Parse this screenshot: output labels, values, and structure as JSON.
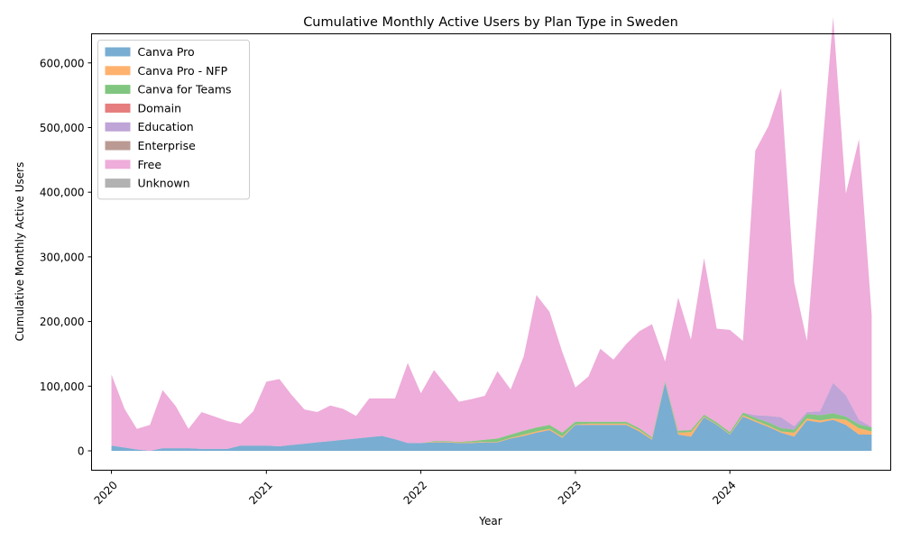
{
  "chart_data": {
    "type": "area",
    "stacked": true,
    "title": "Cumulative Monthly Active Users by Plan Type in Sweden",
    "xlabel": "Year",
    "ylabel": "Cumulative Monthly Active Users",
    "xlim": [
      "2019-11-15",
      "2025-01-15"
    ],
    "ylim": [
      -30000,
      645000
    ],
    "yticks": [
      0,
      100000,
      200000,
      300000,
      400000,
      500000,
      600000
    ],
    "ytick_labels": [
      "0",
      "100,000",
      "200,000",
      "300,000",
      "400,000",
      "500,000",
      "600,000"
    ],
    "xticks": [
      "2020-01-01",
      "2021-01-01",
      "2022-01-01",
      "2023-01-01",
      "2024-01-01"
    ],
    "xtick_labels": [
      "2020",
      "2021",
      "2022",
      "2023",
      "2024"
    ],
    "grid": false,
    "legend_position": "upper-left",
    "x": [
      "2020-01-01",
      "2020-02-01",
      "2020-03-01",
      "2020-04-01",
      "2020-05-01",
      "2020-06-01",
      "2020-07-01",
      "2020-08-01",
      "2020-09-01",
      "2020-10-01",
      "2020-11-01",
      "2020-12-01",
      "2021-01-01",
      "2021-02-01",
      "2021-03-01",
      "2021-04-01",
      "2021-05-01",
      "2021-06-01",
      "2021-07-01",
      "2021-08-01",
      "2021-09-01",
      "2021-10-01",
      "2021-11-01",
      "2021-12-01",
      "2022-01-01",
      "2022-02-01",
      "2022-03-01",
      "2022-04-01",
      "2022-05-01",
      "2022-06-01",
      "2022-07-01",
      "2022-08-01",
      "2022-09-01",
      "2022-10-01",
      "2022-11-01",
      "2022-12-01",
      "2023-01-01",
      "2023-02-01",
      "2023-03-01",
      "2023-04-01",
      "2023-05-01",
      "2023-06-01",
      "2023-07-01",
      "2023-08-01",
      "2023-09-01",
      "2023-10-01",
      "2023-11-01",
      "2023-12-01",
      "2024-01-01",
      "2024-02-01",
      "2024-03-01",
      "2024-04-01",
      "2024-05-01",
      "2024-06-01",
      "2024-07-01",
      "2024-08-01",
      "2024-09-01",
      "2024-10-01",
      "2024-11-01",
      "2024-12-01"
    ],
    "series": [
      {
        "name": "Canva Pro",
        "color": "#1f77b4",
        "values": [
          8000,
          5000,
          2000,
          0,
          4000,
          4000,
          4000,
          3000,
          3000,
          3000,
          8000,
          8000,
          8000,
          7000,
          9000,
          11000,
          13000,
          15000,
          17000,
          19000,
          21000,
          23000,
          18000,
          12000,
          12000,
          13000,
          13000,
          12000,
          12000,
          13000,
          13000,
          19000,
          23000,
          28000,
          32000,
          20000,
          40000,
          40000,
          40000,
          40000,
          40000,
          30000,
          17000,
          105000,
          25000,
          22000,
          52000,
          40000,
          25000,
          53000,
          45000,
          37000,
          28000,
          22000,
          47000,
          44000,
          48000,
          40000,
          25000,
          25000
        ]
      },
      {
        "name": "Canva Pro - NFP",
        "color": "#ff7f0e",
        "values": [
          0,
          0,
          0,
          0,
          0,
          0,
          0,
          0,
          0,
          0,
          0,
          0,
          0,
          0,
          0,
          0,
          0,
          0,
          0,
          0,
          0,
          0,
          0,
          0,
          0,
          1000,
          1000,
          1000,
          1000,
          1000,
          1000,
          1000,
          2000,
          2000,
          2000,
          2000,
          1000,
          2000,
          2000,
          2000,
          2000,
          2000,
          2000,
          1000,
          3000,
          7000,
          1000,
          1000,
          1000,
          2000,
          2000,
          2000,
          2000,
          6000,
          3000,
          3000,
          2000,
          8000,
          10000,
          5000
        ]
      },
      {
        "name": "Canva for Teams",
        "color": "#2ca02c",
        "values": [
          0,
          0,
          0,
          0,
          0,
          0,
          0,
          0,
          0,
          0,
          0,
          0,
          0,
          0,
          0,
          0,
          0,
          0,
          0,
          0,
          0,
          0,
          0,
          0,
          0,
          1000,
          1000,
          1000,
          2000,
          3000,
          5000,
          5000,
          6000,
          6000,
          6000,
          6000,
          4000,
          3000,
          3000,
          3000,
          3000,
          3000,
          2000,
          2000,
          3000,
          3000,
          3000,
          3000,
          3000,
          4000,
          4000,
          5000,
          5000,
          5000,
          7000,
          8000,
          8000,
          5000,
          6000,
          6000
        ]
      },
      {
        "name": "Domain",
        "color": "#d62728",
        "values": [
          0,
          0,
          0,
          0,
          0,
          0,
          0,
          0,
          0,
          0,
          0,
          0,
          0,
          0,
          0,
          0,
          0,
          0,
          0,
          0,
          0,
          0,
          0,
          0,
          0,
          0,
          0,
          0,
          0,
          0,
          0,
          0,
          0,
          0,
          0,
          0,
          0,
          0,
          0,
          0,
          0,
          0,
          0,
          0,
          0,
          0,
          0,
          0,
          0,
          0,
          0,
          0,
          0,
          0,
          0,
          0,
          0,
          0,
          0,
          0
        ]
      },
      {
        "name": "Education",
        "color": "#9467bd",
        "values": [
          0,
          0,
          0,
          0,
          0,
          0,
          0,
          0,
          0,
          0,
          0,
          0,
          0,
          0,
          0,
          0,
          0,
          0,
          0,
          0,
          0,
          0,
          0,
          0,
          0,
          0,
          0,
          0,
          0,
          0,
          0,
          0,
          0,
          0,
          0,
          0,
          0,
          0,
          0,
          0,
          0,
          0,
          0,
          0,
          0,
          0,
          0,
          0,
          0,
          0,
          4000,
          10000,
          17000,
          5000,
          3000,
          6000,
          47000,
          33000,
          7000,
          1000
        ]
      },
      {
        "name": "Enterprise",
        "color": "#8c564b",
        "values": [
          0,
          0,
          0,
          0,
          0,
          0,
          0,
          0,
          0,
          0,
          0,
          0,
          0,
          0,
          0,
          0,
          0,
          0,
          0,
          0,
          0,
          0,
          0,
          0,
          0,
          0,
          0,
          0,
          0,
          0,
          0,
          0,
          0,
          0,
          0,
          0,
          0,
          0,
          0,
          0,
          0,
          0,
          0,
          0,
          0,
          0,
          0,
          0,
          0,
          0,
          0,
          0,
          0,
          0,
          0,
          0,
          0,
          0,
          0,
          0
        ]
      },
      {
        "name": "Free",
        "color": "#e377c2",
        "values": [
          110000,
          60000,
          32000,
          40000,
          90000,
          65000,
          30000,
          57000,
          50000,
          43000,
          34000,
          53000,
          99000,
          104000,
          78000,
          53000,
          47000,
          55000,
          48000,
          35000,
          60000,
          58000,
          63000,
          124000,
          77000,
          110000,
          87000,
          62000,
          65000,
          68000,
          104000,
          70000,
          115000,
          205000,
          175000,
          125000,
          53000,
          70000,
          113000,
          96000,
          120000,
          150000,
          175000,
          30000,
          206000,
          140000,
          242000,
          145000,
          158000,
          111000,
          409000,
          448000,
          509000,
          222000,
          110000,
          364000,
          566000,
          312000,
          434000,
          173000
        ]
      },
      {
        "name": "Unknown",
        "color": "#7f7f7f",
        "values": [
          0,
          0,
          0,
          0,
          0,
          0,
          0,
          0,
          0,
          0,
          0,
          0,
          0,
          0,
          0,
          0,
          0,
          0,
          0,
          0,
          0,
          0,
          0,
          0,
          0,
          0,
          0,
          0,
          0,
          0,
          0,
          0,
          0,
          0,
          0,
          0,
          0,
          0,
          0,
          0,
          0,
          0,
          0,
          0,
          0,
          0,
          0,
          0,
          0,
          0,
          0,
          0,
          0,
          0,
          0,
          0,
          0,
          0,
          0,
          0
        ]
      }
    ]
  }
}
